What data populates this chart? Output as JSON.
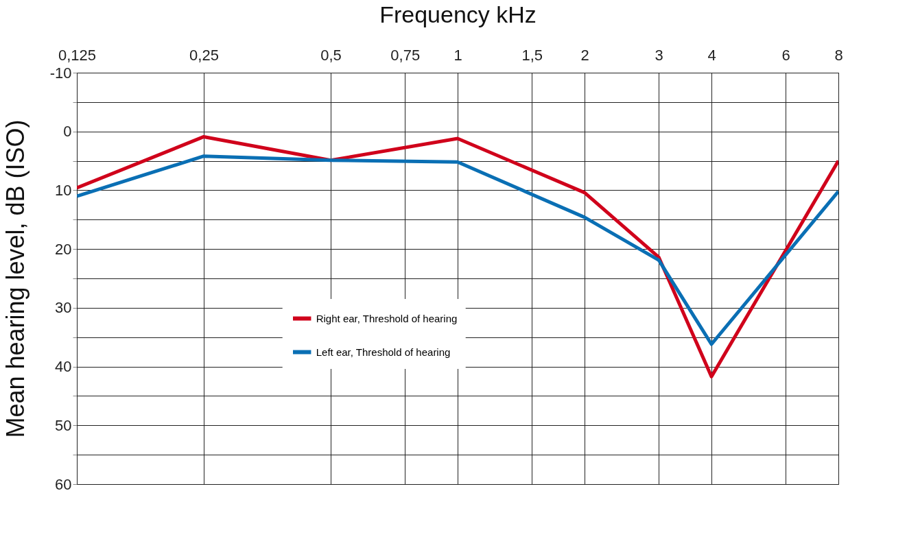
{
  "chart_data": {
    "type": "line",
    "xlabel": "Frequency kHz",
    "ylabel": "Mean hearing level, dB (ISO)",
    "x": [
      0.125,
      0.25,
      0.5,
      1,
      2,
      3,
      4,
      8
    ],
    "series": [
      {
        "name": "Right ear, Threshold of hearing",
        "color": "#d0021b",
        "values": [
          9.6,
          0.9,
          4.9,
          1.2,
          10.4,
          21.4,
          41.7,
          5
        ]
      },
      {
        "name": "Left ear, Threshold of hearing",
        "color": "#0a6fb4",
        "values": [
          11,
          4.2,
          4.9,
          5.2,
          14.6,
          21.9,
          36.2,
          10.2
        ]
      }
    ],
    "log": "x",
    "xlim": [
      0.125,
      8
    ],
    "xticks": [
      {
        "value": 0.125,
        "label": "0,125"
      },
      {
        "value": 0.25,
        "label": "0,25"
      },
      {
        "value": 0.5,
        "label": "0,5"
      },
      {
        "value": 0.75,
        "label": "0,75"
      },
      1,
      {
        "value": 1.5,
        "label": "1,5"
      },
      2,
      3,
      4,
      6,
      8
    ],
    "ylim": [
      60,
      -10
    ],
    "yticks": [
      -10,
      {
        "value": -5,
        "label": null
      },
      0,
      {
        "value": 5,
        "label": null
      },
      10,
      {
        "value": 15,
        "label": null
      },
      20,
      {
        "value": 25,
        "label": null
      },
      30,
      {
        "value": 35,
        "label": null
      },
      40,
      {
        "value": 45,
        "label": null
      },
      50,
      {
        "value": 55,
        "label": null
      },
      60
    ],
    "grid": true,
    "legend": "bottom",
    "marker": "none",
    "line_style": "solid"
  }
}
